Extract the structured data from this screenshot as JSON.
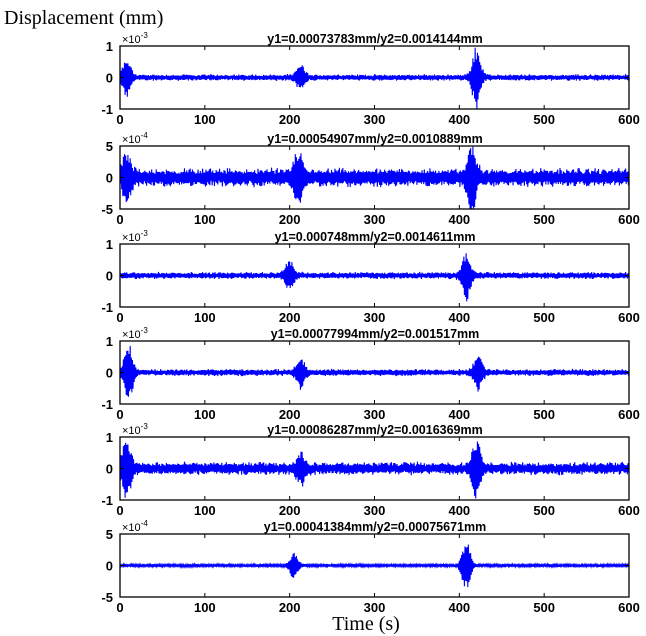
{
  "figure": {
    "ylabel": "Displacement (mm)",
    "xlabel": "Time (s)"
  },
  "chart_data": [
    {
      "type": "line",
      "title": "y1=0.00073783mm/y2=0.0014144mm",
      "multiplier": "×10",
      "exponent": "-3",
      "xlim": [
        0,
        600
      ],
      "ylim": [
        -1,
        1
      ],
      "xticks": [
        "0",
        "100",
        "200",
        "300",
        "400",
        "500",
        "600"
      ],
      "yticks": [
        "1",
        "0",
        "-1"
      ],
      "color": "#0000ff",
      "baseline_amp": 0.11,
      "bursts": [
        {
          "t": 8,
          "amp": 0.55
        },
        {
          "t": 213,
          "amp": 0.35
        },
        {
          "t": 420,
          "amp": 0.95
        }
      ]
    },
    {
      "type": "line",
      "title": "y1=0.00054907mm/y2=0.0010889mm",
      "multiplier": "×10",
      "exponent": "-4",
      "xlim": [
        0,
        600
      ],
      "ylim": [
        -5,
        5
      ],
      "xticks": [
        "0",
        "100",
        "200",
        "300",
        "400",
        "500",
        "600"
      ],
      "yticks": [
        "5",
        "0",
        "-5"
      ],
      "color": "#0000ff",
      "baseline_amp": 1.6,
      "bursts": [
        {
          "t": 8,
          "amp": 3.2
        },
        {
          "t": 210,
          "amp": 3.5
        },
        {
          "t": 415,
          "amp": 5.0
        }
      ]
    },
    {
      "type": "line",
      "title": "y1=0.000748mm/y2=0.0014611mm",
      "multiplier": "×10",
      "exponent": "-3",
      "xlim": [
        0,
        600
      ],
      "ylim": [
        -1,
        1
      ],
      "xticks": [
        "0",
        "100",
        "200",
        "300",
        "400",
        "500",
        "600"
      ],
      "yticks": [
        "1",
        "0",
        "-1"
      ],
      "color": "#0000ff",
      "baseline_amp": 0.12,
      "bursts": [
        {
          "t": 200,
          "amp": 0.45
        },
        {
          "t": 408,
          "amp": 0.75
        }
      ]
    },
    {
      "type": "line",
      "title": "y1=0.00077994mm/y2=0.001517mm",
      "multiplier": "×10",
      "exponent": "-3",
      "xlim": [
        0,
        600
      ],
      "ylim": [
        -1,
        1
      ],
      "xticks": [
        "0",
        "100",
        "200",
        "300",
        "400",
        "500",
        "600"
      ],
      "yticks": [
        "1",
        "0",
        "-1"
      ],
      "color": "#0000ff",
      "baseline_amp": 0.12,
      "bursts": [
        {
          "t": 10,
          "amp": 0.9
        },
        {
          "t": 213,
          "amp": 0.45
        },
        {
          "t": 422,
          "amp": 0.55
        }
      ]
    },
    {
      "type": "line",
      "title": "y1=0.00086287mm/y2=0.0016369mm",
      "multiplier": "×10",
      "exponent": "-3",
      "xlim": [
        0,
        600
      ],
      "ylim": [
        -1,
        1
      ],
      "xticks": [
        "0",
        "100",
        "200",
        "300",
        "400",
        "500",
        "600"
      ],
      "yticks": [
        "1",
        "0",
        "-1"
      ],
      "color": "#0000ff",
      "baseline_amp": 0.22,
      "bursts": [
        {
          "t": 8,
          "amp": 0.9
        },
        {
          "t": 213,
          "amp": 0.45
        },
        {
          "t": 420,
          "amp": 0.85
        }
      ]
    },
    {
      "type": "line",
      "title": "y1=0.00041384mm/y2=0.00075671mm",
      "multiplier": "×10",
      "exponent": "-4",
      "xlim": [
        0,
        600
      ],
      "ylim": [
        -5,
        5
      ],
      "xticks": [
        "0",
        "100",
        "200",
        "300",
        "400",
        "500",
        "600"
      ],
      "yticks": [
        "5",
        "0",
        "-5"
      ],
      "color": "#0000ff",
      "baseline_amp": 0.25,
      "bursts": [
        {
          "t": 205,
          "amp": 2.0
        },
        {
          "t": 408,
          "amp": 4.0
        }
      ]
    }
  ]
}
